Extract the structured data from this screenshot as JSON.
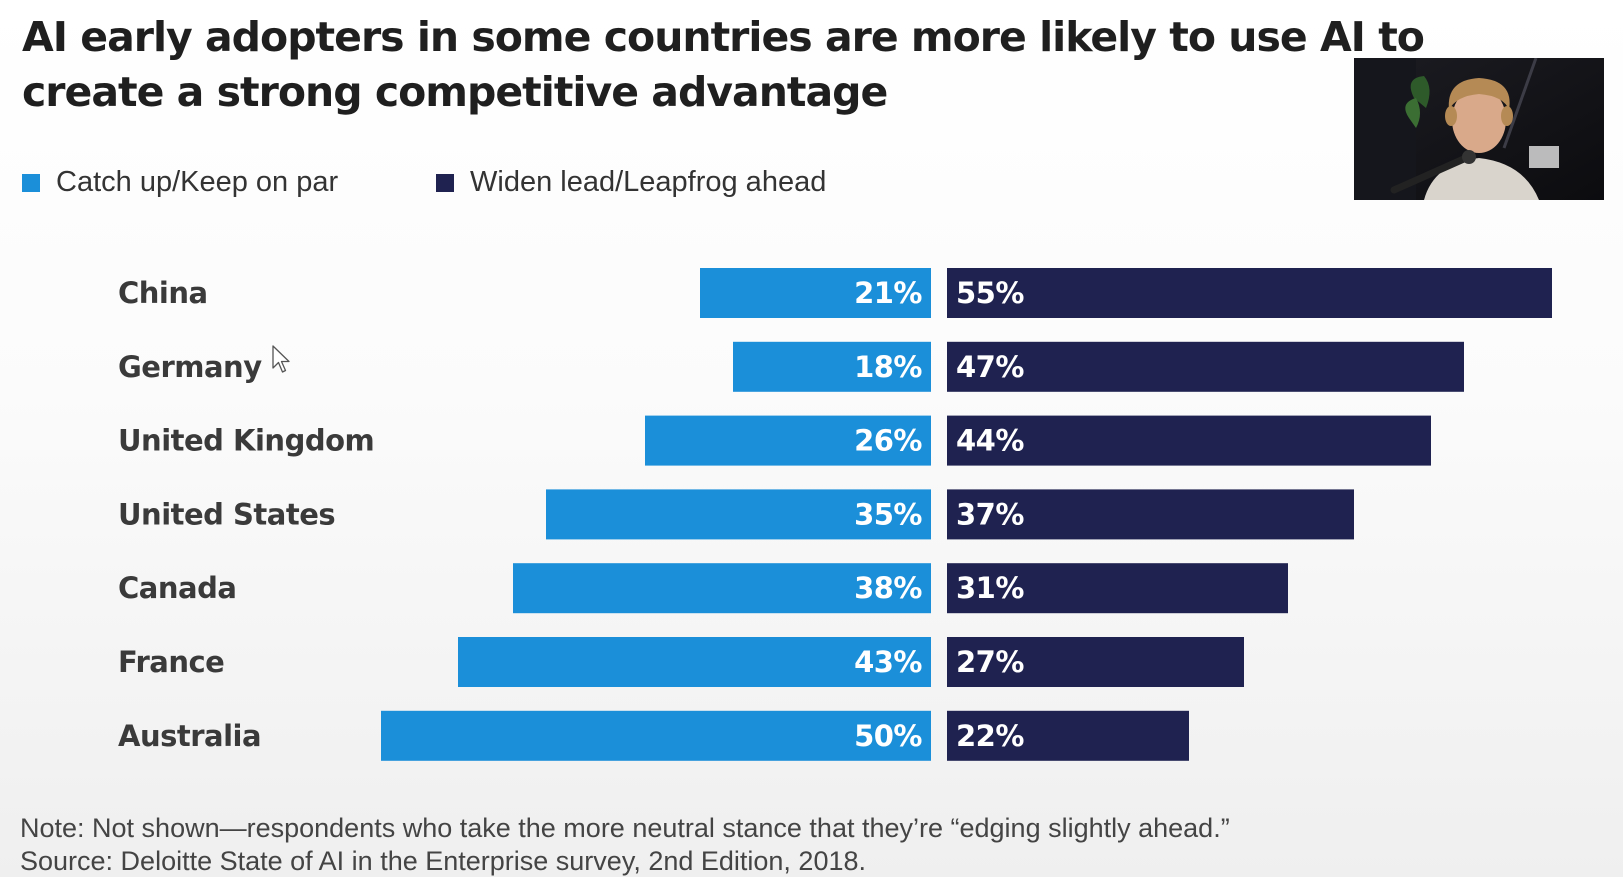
{
  "chart_data": {
    "type": "bar",
    "title": "AI early adopters in some countries are more likely to use AI to create a strong competitive advantage",
    "categories": [
      "China",
      "Germany",
      "United Kingdom",
      "United States",
      "Canada",
      "France",
      "Australia"
    ],
    "series": [
      {
        "name": "Catch up/Keep on par",
        "values": [
          21,
          18,
          26,
          35,
          38,
          43,
          50
        ],
        "labels": [
          "21%",
          "18%",
          "26%",
          "35%",
          "38%",
          "43%",
          "50%"
        ],
        "color": "#1b8fd9",
        "direction": "left"
      },
      {
        "name": "Widen lead/Leapfrog ahead",
        "values": [
          55,
          47,
          44,
          37,
          31,
          27,
          22
        ],
        "labels": [
          "55%",
          "47%",
          "44%",
          "37%",
          "31%",
          "27%",
          "22%"
        ],
        "color": "#1f2250",
        "direction": "right"
      }
    ],
    "legend": "top-left",
    "grid": false
  },
  "footer": {
    "note": "Note: Not shown—respondents who take the more neutral stance that they’re “edging slightly ahead.”",
    "source": "Source: Deloitte State of AI in the Enterprise survey, 2nd Edition, 2018."
  },
  "icons": {
    "cursor": "mouse-pointer-icon",
    "webcam": "presenter-webcam-overlay"
  }
}
